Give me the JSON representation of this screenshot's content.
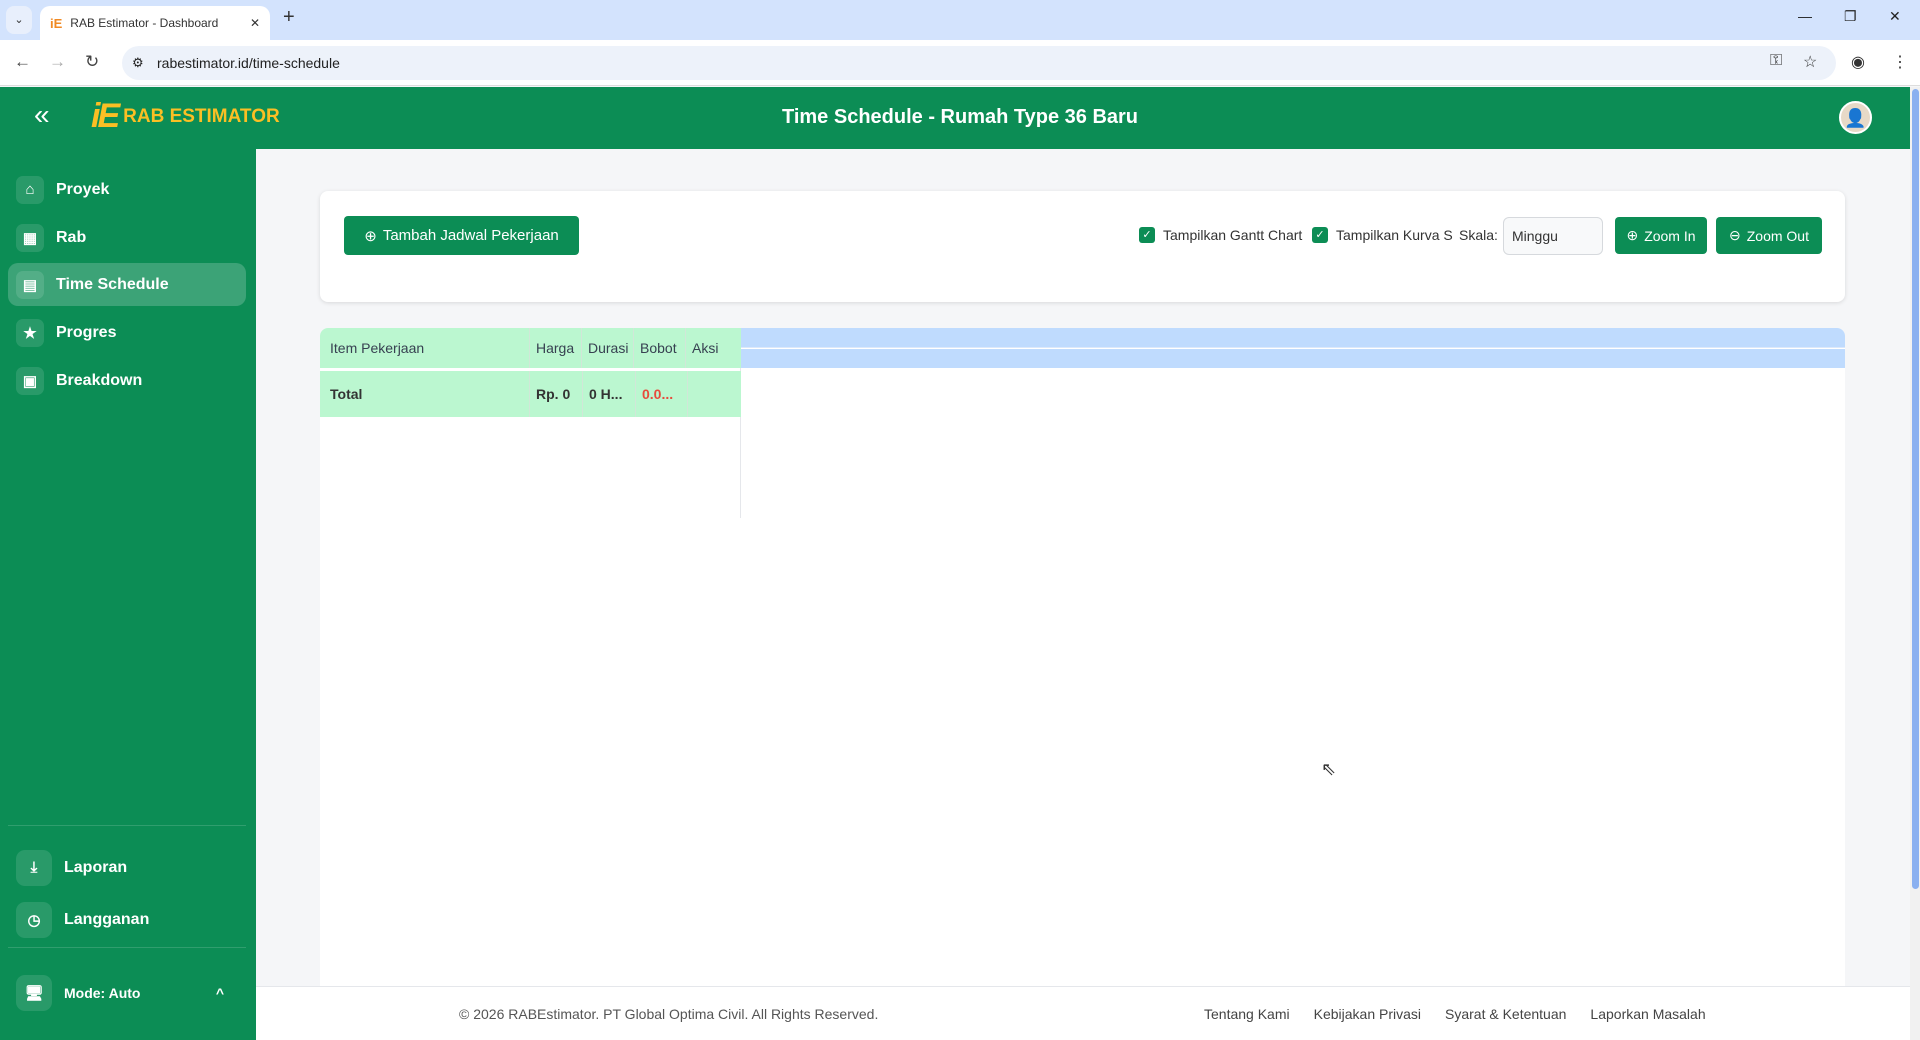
{
  "browser": {
    "tab_title": "RAB Estimator - Dashboard",
    "url": "rabestimator.id/time-schedule"
  },
  "header": {
    "logo_text": "RAB ESTIMATOR",
    "page_title": "Time Schedule - Rumah Type 36 Baru"
  },
  "sidebar": {
    "items": [
      {
        "label": "Proyek",
        "icon": "home-icon"
      },
      {
        "label": "Rab",
        "icon": "grid-icon"
      },
      {
        "label": "Time Schedule",
        "icon": "calendar-icon",
        "active": true
      },
      {
        "label": "Progres",
        "icon": "star-icon"
      },
      {
        "label": "Breakdown",
        "icon": "archive-icon"
      }
    ],
    "bottom": [
      {
        "label": "Laporan",
        "icon": "download-icon"
      },
      {
        "label": "Langganan",
        "icon": "clock-icon"
      }
    ],
    "mode": "Mode: Auto"
  },
  "toolbar": {
    "add_label": "Tambah Jadwal Pekerjaan",
    "gantt_label": "Tampilkan Gantt Chart",
    "gantt_checked": true,
    "kurva_label": "Tampilkan Kurva S",
    "kurva_checked": true,
    "skala_label": "Skala:",
    "skala_value": "Minggu",
    "zoom_in": "Zoom In",
    "zoom_out": "Zoom Out"
  },
  "table": {
    "columns": [
      "Item Pekerjaan",
      "Harga",
      "Durasi",
      "Bobot",
      "Aksi"
    ],
    "total": {
      "label": "Total",
      "harga": "Rp. 0",
      "durasi": "0 H...",
      "bobot": "0.0...",
      "aksi": ""
    }
  },
  "footer": {
    "copyright": "© 2026 RABEstimator. PT Global Optima Civil. All Rights Reserved.",
    "links": [
      "Tentang Kami",
      "Kebijakan Privasi",
      "Syarat & Ketentuan",
      "Laporkan Masalah"
    ]
  },
  "colors": {
    "primary": "#0c8d55",
    "logo": "#fbbf24",
    "table_header": "#bbf7d0",
    "gantt_header": "#bfdbfe",
    "bobot": "#e74c3c"
  }
}
